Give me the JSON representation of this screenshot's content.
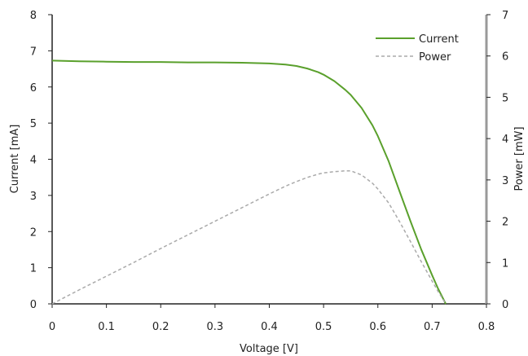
{
  "chart_data": {
    "type": "line",
    "title": "",
    "xlabel": "Voltage [V]",
    "ylabel": "Current [mA]",
    "y2label": "Power [mW]",
    "xlim": [
      0,
      0.8
    ],
    "ylim": [
      0,
      8
    ],
    "y2lim": [
      0,
      7
    ],
    "x_ticks": [
      "0",
      "0.1",
      "0.2",
      "0.3",
      "0.4",
      "0.5",
      "0.6",
      "0.7",
      "0.8"
    ],
    "y_ticks": [
      "0",
      "1",
      "2",
      "3",
      "4",
      "5",
      "6",
      "7",
      "8"
    ],
    "y2_ticks": [
      "0",
      "1",
      "2",
      "3",
      "4",
      "5",
      "6",
      "7"
    ],
    "grid": false,
    "legend_position": "top-right",
    "series": [
      {
        "name": "Current",
        "axis": "left",
        "color": "#5aa02c",
        "style": "solid",
        "x": [
          0,
          0.05,
          0.1,
          0.15,
          0.2,
          0.25,
          0.3,
          0.35,
          0.4,
          0.43,
          0.45,
          0.47,
          0.49,
          0.5,
          0.52,
          0.54,
          0.55,
          0.57,
          0.59,
          0.6,
          0.62,
          0.64,
          0.66,
          0.68,
          0.7,
          0.71,
          0.72,
          0.725
        ],
        "y": [
          6.73,
          6.71,
          6.7,
          6.69,
          6.69,
          6.68,
          6.68,
          6.67,
          6.65,
          6.62,
          6.58,
          6.51,
          6.41,
          6.34,
          6.16,
          5.92,
          5.78,
          5.42,
          4.94,
          4.64,
          3.94,
          3.11,
          2.29,
          1.5,
          0.79,
          0.45,
          0.15,
          0
        ]
      },
      {
        "name": "Power",
        "axis": "right",
        "color": "#aaaaaa",
        "style": "dashed",
        "x": [
          0,
          0.05,
          0.1,
          0.15,
          0.2,
          0.25,
          0.3,
          0.35,
          0.4,
          0.43,
          0.45,
          0.47,
          0.49,
          0.5,
          0.52,
          0.54,
          0.55,
          0.57,
          0.59,
          0.6,
          0.62,
          0.64,
          0.66,
          0.68,
          0.7,
          0.71,
          0.72,
          0.725
        ],
        "y": [
          0,
          0.34,
          0.67,
          1.0,
          1.34,
          1.67,
          2.0,
          2.33,
          2.66,
          2.85,
          2.96,
          3.06,
          3.14,
          3.17,
          3.2,
          3.22,
          3.22,
          3.12,
          2.92,
          2.78,
          2.44,
          1.99,
          1.51,
          1.02,
          0.55,
          0.32,
          0.11,
          0
        ]
      }
    ]
  }
}
